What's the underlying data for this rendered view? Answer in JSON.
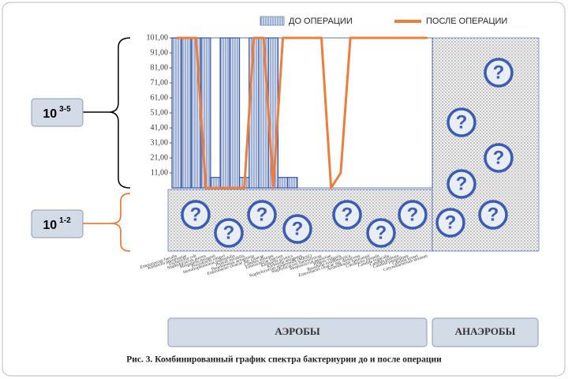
{
  "chart_data": {
    "type": "bar-line",
    "categories": [
      "Enterococcus faecalis",
      "Klebsiella pneumoniae",
      "Escherichia coli",
      "Staphylococcus aureus",
      "Morganella morganii",
      "Providencia rettgeri",
      "Stenotrophomonas maltophilia",
      "Proteus mirabilis",
      "Pseudomonas aeruginosa",
      "Enterobacter cloacae ssp. cloacae",
      "Candida albicans",
      "Enterococcus faecium",
      "Klebsiella oxytoca",
      "Klebsiella aerogenes",
      "Staphylococcus epidermidis (MRSE)",
      "Staphylococcus haemolyticus",
      "Streptococcus agalactiae",
      "Proteus vulgaris",
      "Raoultella ornithinolytica",
      "Enterobacter cloacae ssp. dissolvens",
      "Acinetobacter baumannii",
      "Citrobacter freundii",
      "Candida tropicalis",
      "Candida glabrata",
      "Candida parapsilosis",
      "Candida krusei",
      "Corynebacterium striatum"
    ],
    "series": [
      {
        "name": "ДО ОПЕРАЦИИ",
        "color": "#3556a8",
        "values": [
          101,
          101,
          101,
          101,
          8,
          101,
          101,
          8,
          101,
          101,
          101,
          8,
          8,
          null,
          null,
          null,
          null,
          null,
          null,
          null,
          null,
          null,
          null,
          null,
          null,
          null,
          null
        ]
      },
      {
        "name": "ПОСЛЕ ОПЕРАЦИИ",
        "color": "#ee7d3b",
        "values": [
          101,
          101,
          101,
          1,
          1,
          1,
          1,
          1,
          101,
          101,
          1,
          101,
          101,
          101,
          101,
          101,
          1,
          11,
          101,
          101,
          101,
          101,
          101,
          101,
          101,
          101,
          101
        ]
      }
    ],
    "ylim": [
      1,
      101
    ],
    "yticks": [
      {
        "value": 11,
        "label": "11,00"
      },
      {
        "value": 21,
        "label": "21,00"
      },
      {
        "value": 31,
        "label": "31,00"
      },
      {
        "value": 41,
        "label": "41,00"
      },
      {
        "value": 51,
        "label": "51,00"
      },
      {
        "value": 61,
        "label": "61,00"
      },
      {
        "value": 71,
        "label": "71,00"
      },
      {
        "value": 81,
        "label": "81,00"
      },
      {
        "value": 91,
        "label": "91,00"
      },
      {
        "value": 101,
        "label": "101,00"
      }
    ],
    "annotations": [
      {
        "base": "10",
        "exp": "3-5"
      },
      {
        "base": "10",
        "exp": "1-2"
      }
    ],
    "question_mark": "?",
    "groups": [
      "АЭРОБЫ",
      "АНАЭРОБЫ"
    ],
    "caption": "Рис. 3. Комбинированный график спектра бактериурии до и после операции"
  }
}
